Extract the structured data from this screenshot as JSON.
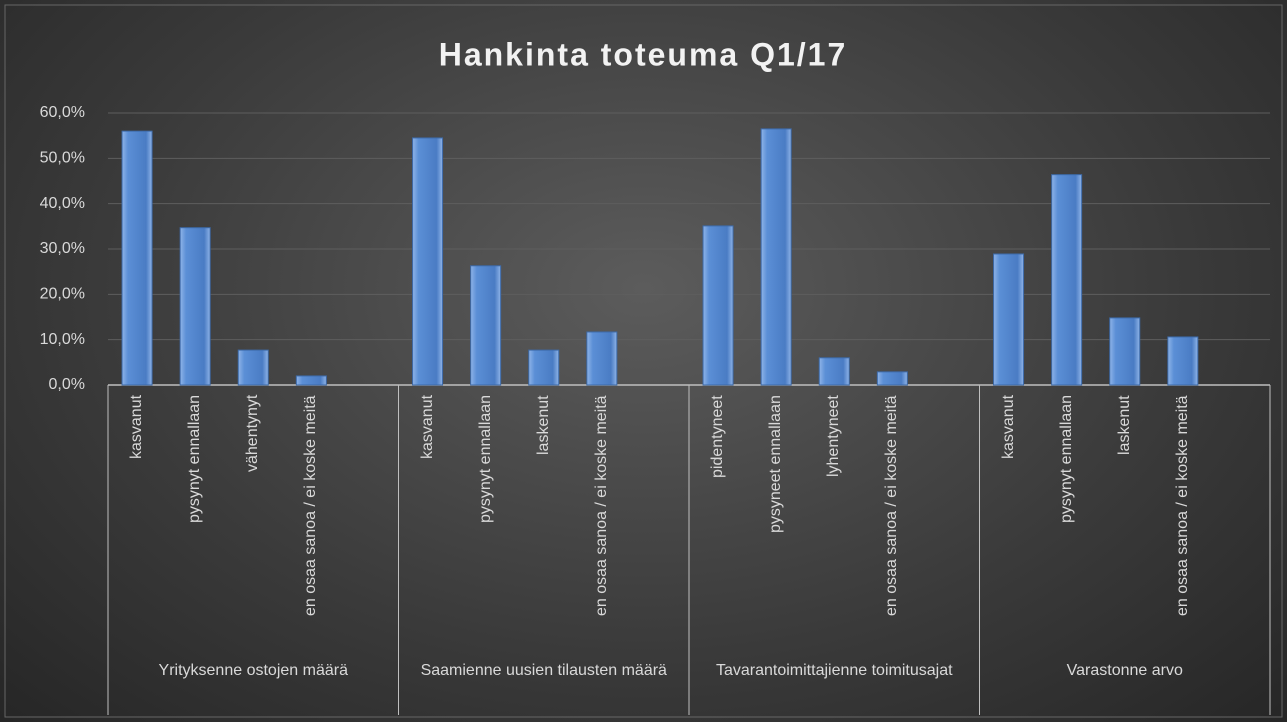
{
  "chart_data": {
    "type": "bar",
    "title": "Hankinta toteuma Q1/17",
    "color": "#5b8fd6",
    "ylim": [
      0,
      60
    ],
    "yticks": [
      {
        "value": 0,
        "label": "0,0%"
      },
      {
        "value": 10,
        "label": "10,0%"
      },
      {
        "value": 20,
        "label": "20,0%"
      },
      {
        "value": 30,
        "label": "30,0%"
      },
      {
        "value": 40,
        "label": "40,0%"
      },
      {
        "value": 50,
        "label": "50,0%"
      },
      {
        "value": 60,
        "label": "60,0%"
      }
    ],
    "grid": true,
    "groups": [
      {
        "name": "Yrityksenne ostojen määrä",
        "categories": [
          "kasvanut",
          "pysynyt ennallaan",
          "vähentynyt",
          "en osaa sanoa / ei koske meitä"
        ],
        "values": [
          56,
          34.7,
          7.7,
          2
        ]
      },
      {
        "name": "Saamienne uusien tilausten määrä",
        "categories": [
          "kasvanut",
          "pysynyt ennallaan",
          "laskenut",
          "en osaa sanoa / ei koske meitä"
        ],
        "values": [
          54.5,
          26.3,
          7.7,
          11.7
        ]
      },
      {
        "name": "Tavarantoimittajienne toimitusajat",
        "categories": [
          "pidentyneet",
          "pysyneet ennallaan",
          "lyhentyneet",
          "en osaa sanoa / ei koske meitä"
        ],
        "values": [
          35.1,
          56.5,
          6,
          2.9
        ]
      },
      {
        "name": "Varastonne arvo",
        "categories": [
          "kasvanut",
          "pysynyt ennallaan",
          "laskenut",
          "en osaa sanoa / ei koske meitä"
        ],
        "values": [
          28.9,
          46.4,
          14.8,
          10.6
        ]
      }
    ]
  }
}
